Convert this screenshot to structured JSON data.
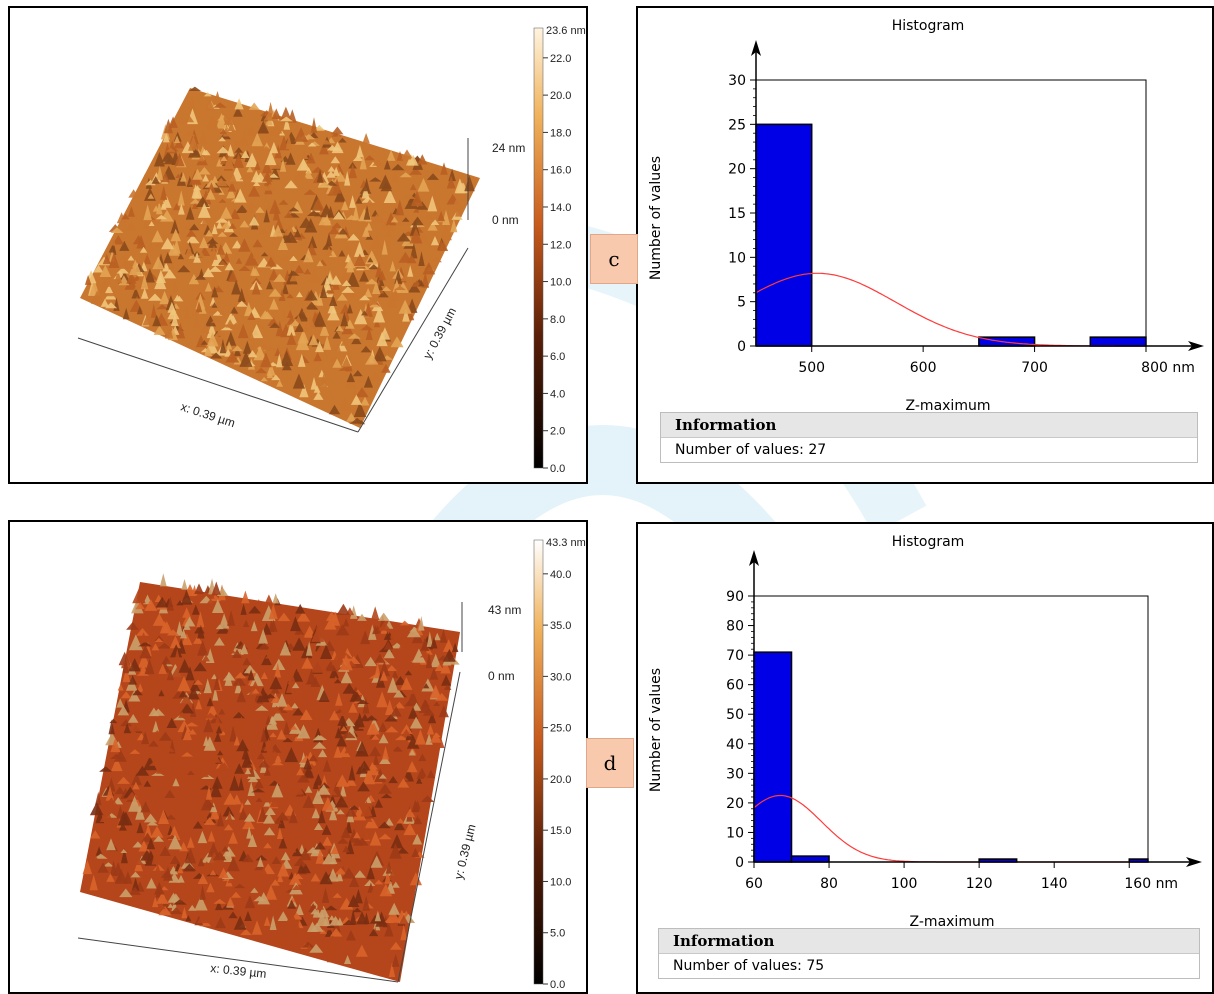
{
  "afm": [
    {
      "colorbar_max_label": "23.6 nm",
      "colorbar_ticks": [
        "22.0",
        "20.0",
        "18.0",
        "16.0",
        "14.0",
        "12.0",
        "10.0",
        "8.0",
        "6.0",
        "4.0",
        "2.0",
        "0.0"
      ],
      "z_top_label": "24 nm",
      "z_bottom_label": "0 nm",
      "x_axis_label": "x: 0.39 µm",
      "y_axis_label": "y: 0.39 µm",
      "surface_colors": [
        "#c9762f",
        "#e3a454",
        "#8a4a1c",
        "#f0c57a",
        "#b85f22"
      ]
    },
    {
      "colorbar_max_label": "43.3 nm",
      "colorbar_ticks": [
        "40.0",
        "35.0",
        "30.0",
        "25.0",
        "20.0",
        "15.0",
        "10.0",
        "5.0",
        "0.0"
      ],
      "z_top_label": "43 nm",
      "z_bottom_label": "0 nm",
      "x_axis_label": "x: 0.39 µm",
      "y_axis_label": "y: 0.39 µm",
      "surface_colors": [
        "#b5461b",
        "#d8632a",
        "#7a2d12",
        "#caa06a",
        "#9c3a16"
      ]
    }
  ],
  "tags": [
    "c",
    "d"
  ],
  "chart_data": [
    {
      "type": "bar",
      "title": "Histogram",
      "xlabel": "Z-maximum",
      "ylabel": "Number of values",
      "x_unit": "nm",
      "xlim": [
        450,
        800
      ],
      "ylim": [
        0,
        30
      ],
      "x_ticks": [
        500,
        600,
        700,
        800
      ],
      "y_ticks": [
        0,
        5,
        10,
        15,
        20,
        25,
        30
      ],
      "bars": [
        {
          "x0": 450,
          "x1": 500,
          "value": 25
        },
        {
          "x0": 650,
          "x1": 700,
          "value": 1
        },
        {
          "x0": 750,
          "x1": 800,
          "value": 1
        }
      ],
      "fit_curve": {
        "type": "normal",
        "mean": 505,
        "sd": 70,
        "peak": 8.2
      },
      "bar_color": "#0000e6",
      "curve_color": "#ff3b3b",
      "info_title": "Information",
      "info_text": "Number of values: 27"
    },
    {
      "type": "bar",
      "title": "Histogram",
      "xlabel": "Z-maximum",
      "ylabel": "Number of values",
      "x_unit": "nm",
      "xlim": [
        60,
        165
      ],
      "ylim": [
        0,
        90
      ],
      "x_ticks": [
        60,
        80,
        100,
        120,
        140,
        160
      ],
      "y_ticks": [
        0,
        10,
        20,
        30,
        40,
        50,
        60,
        70,
        80,
        90
      ],
      "bars": [
        {
          "x0": 60,
          "x1": 70,
          "value": 71
        },
        {
          "x0": 70,
          "x1": 80,
          "value": 2
        },
        {
          "x0": 120,
          "x1": 130,
          "value": 1
        },
        {
          "x0": 160,
          "x1": 165,
          "value": 1
        }
      ],
      "fit_curve": {
        "type": "normal",
        "mean": 67,
        "sd": 11,
        "peak": 22.5
      },
      "bar_color": "#0000e6",
      "curve_color": "#ff3b3b",
      "info_title": "Information",
      "info_text": "Number of values: 75"
    }
  ]
}
